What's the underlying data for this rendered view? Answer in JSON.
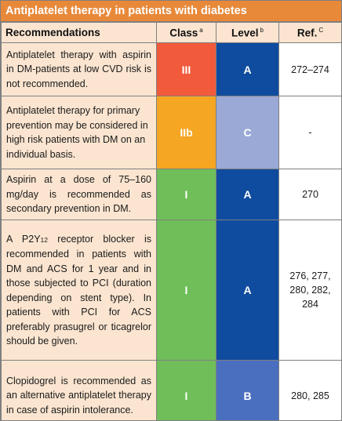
{
  "title": "Antiplatelet therapy in patients with diabetes",
  "headers": {
    "recommendations": "Recommendations",
    "class": "Class",
    "class_note": "a",
    "level": "Level",
    "level_note": "b",
    "ref": "Ref.",
    "ref_note": "C"
  },
  "rows": [
    {
      "text": "Antiplatelet therapy with aspirin in DM-patients at low CVD risk is not recommended.",
      "class": "III",
      "level": "A",
      "ref": "272–274",
      "class_color": "#f15a3b",
      "level_color": "#0f4c9f"
    },
    {
      "text": "Antiplatelet therapy for primary prevention may be considered in high risk patients with DM on an individual basis.",
      "class": "IIb",
      "level": "C",
      "ref": "-",
      "class_color": "#f5a623",
      "level_color": "#9aa9d6"
    },
    {
      "text": "Aspirin at a dose of 75–160 mg/day is recommended as secondary prevention in DM.",
      "class": "I",
      "level": "A",
      "ref": "270",
      "class_color": "#6fbe5a",
      "level_color": "#0f4c9f"
    },
    {
      "text_before": "A P2Y",
      "text_sub": "12",
      "text_after": " receptor blocker is recommended in patients with DM and ACS for 1 year and in those subjected to PCI (duration depending on stent type). In patients with PCI for ACS preferably prasugrel or ticagrelor should be given.",
      "class": "I",
      "level": "A",
      "ref": "276, 277, 280, 282, 284",
      "class_color": "#6fbe5a",
      "level_color": "#0f4c9f"
    },
    {
      "text": "Clopidogrel is recommended as an alternative antiplatelet therapy in case of aspirin intolerance.",
      "class": "I",
      "level": "B",
      "ref": "280, 285",
      "class_color": "#6fbe5a",
      "level_color": "#4a6fbf"
    }
  ]
}
